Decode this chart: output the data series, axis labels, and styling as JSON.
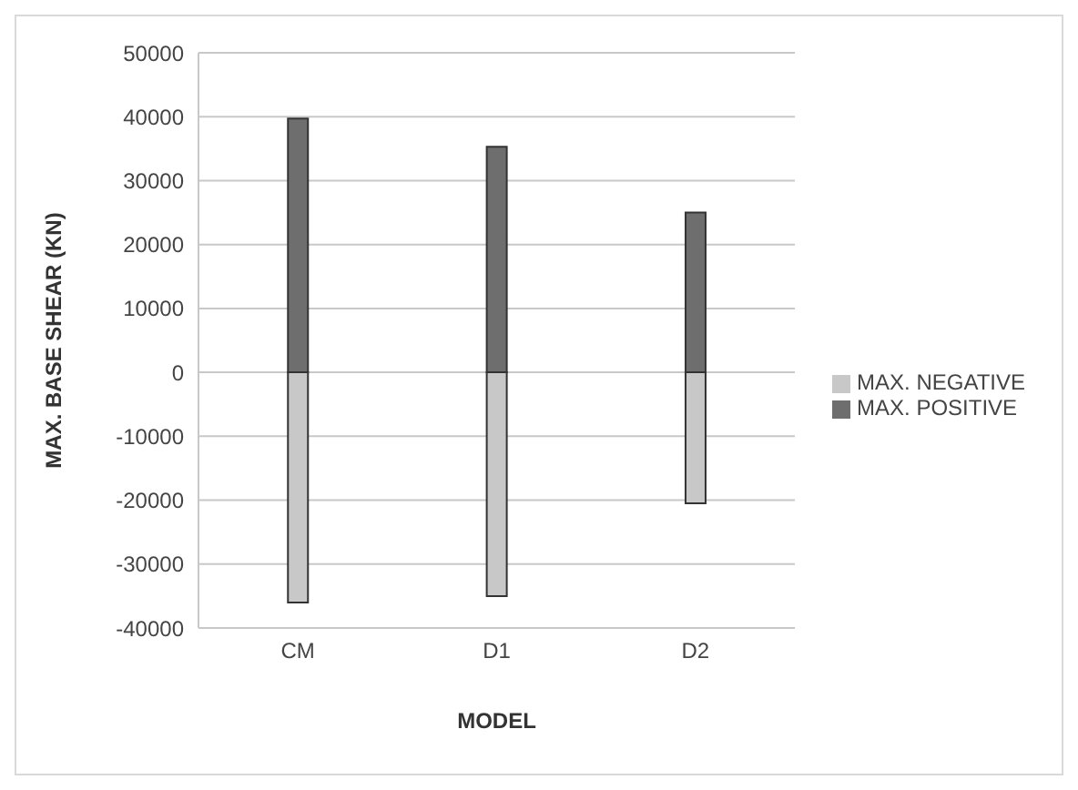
{
  "chart_data": {
    "type": "bar",
    "stacked": true,
    "categories": [
      "CM",
      "D1",
      "D2"
    ],
    "series": [
      {
        "name": "MAX. NEGATIVE",
        "color": "#c8c8c8",
        "values": [
          -36000,
          -35000,
          -20500
        ]
      },
      {
        "name": "MAX. POSITIVE",
        "color": "#6e6e6e",
        "values": [
          39700,
          35300,
          25000
        ]
      }
    ],
    "xlabel": "MODEL",
    "ylabel": "MAX. BASE SHEAR (KN)",
    "ylim": [
      -40000,
      50000
    ],
    "yticks": [
      -40000,
      -30000,
      -20000,
      -10000,
      0,
      10000,
      20000,
      30000,
      40000,
      50000
    ],
    "grid": "y",
    "legend": "right"
  }
}
